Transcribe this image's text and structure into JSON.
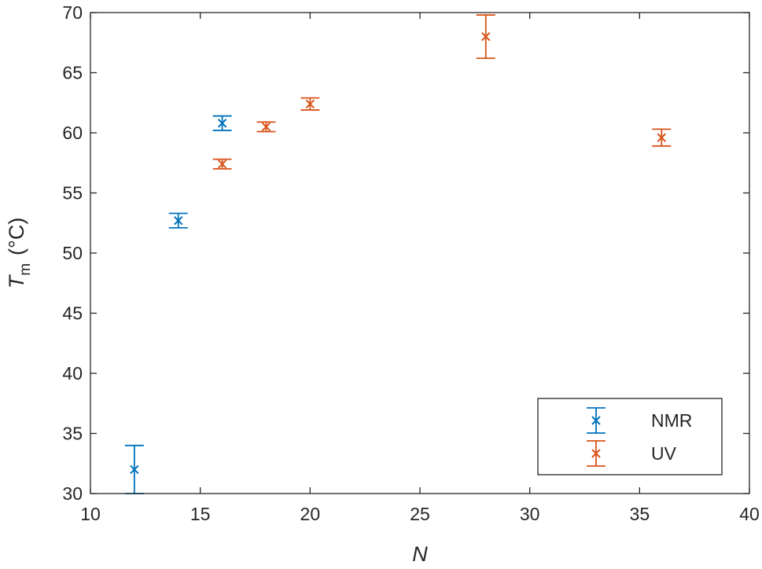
{
  "chart_data": {
    "type": "scatter",
    "xlabel": "N",
    "ylabel_symbol": "T",
    "ylabel_subscript": "m",
    "ylabel_unit": "(°C)",
    "xlim": [
      10,
      40
    ],
    "ylim": [
      30,
      70
    ],
    "xticks": [
      10,
      15,
      20,
      25,
      30,
      35,
      40
    ],
    "yticks": [
      30,
      35,
      40,
      45,
      50,
      55,
      60,
      65,
      70
    ],
    "grid": false,
    "legend_position": "bottom-right",
    "series": [
      {
        "name": "NMR",
        "color": "#0072BD",
        "marker": "x",
        "points": [
          {
            "x": 12,
            "y": 32.0,
            "err": 2.0
          },
          {
            "x": 14,
            "y": 52.7,
            "err": 0.6
          },
          {
            "x": 16,
            "y": 60.8,
            "err": 0.6
          }
        ]
      },
      {
        "name": "UV",
        "color": "#D95319",
        "marker": "x",
        "points": [
          {
            "x": 16,
            "y": 57.4,
            "err": 0.4
          },
          {
            "x": 18,
            "y": 60.5,
            "err": 0.4
          },
          {
            "x": 20,
            "y": 62.4,
            "err": 0.5
          },
          {
            "x": 28,
            "y": 68.0,
            "err": 1.8
          },
          {
            "x": 36,
            "y": 59.6,
            "err": 0.7
          }
        ]
      }
    ]
  }
}
